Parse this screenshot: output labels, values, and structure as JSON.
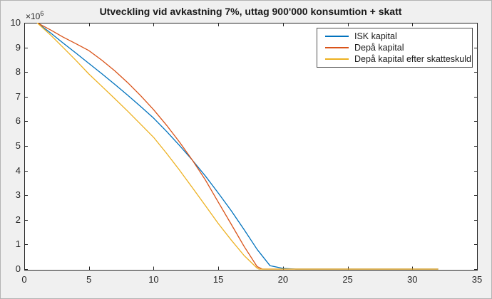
{
  "figure": {
    "background": "#f0f0f0",
    "border_color": "#b3b3b3",
    "plot_background": "#ffffff",
    "axis_color": "#262626",
    "tick_label_color": "#262626"
  },
  "chart_data": {
    "type": "line",
    "title": "Utveckling vid avkastning 7%, uttag 900'000 konsumtion + skatt",
    "xlabel": "",
    "ylabel": "",
    "grid": false,
    "x": {
      "min": 0,
      "max": 35,
      "ticks": [
        0,
        5,
        10,
        15,
        20,
        25,
        30,
        35
      ]
    },
    "y": {
      "min": 0,
      "max": 10,
      "ticks": [
        0,
        1,
        2,
        3,
        4,
        5,
        6,
        7,
        8,
        9,
        10
      ],
      "multiplier_base": "×10",
      "multiplier_exponent": "6",
      "unit_scale": 1000000
    },
    "legend": {
      "position": "top-right"
    },
    "series": [
      {
        "name": "ISK kapital",
        "color": "#0072BD",
        "points": [
          [
            1,
            10
          ],
          [
            2,
            9.6
          ],
          [
            3,
            9.18
          ],
          [
            4,
            8.77
          ],
          [
            5,
            8.35
          ],
          [
            6,
            7.93
          ],
          [
            7,
            7.5
          ],
          [
            8,
            7.06
          ],
          [
            9,
            6.6
          ],
          [
            10,
            6.13
          ],
          [
            11,
            5.59
          ],
          [
            12,
            5.02
          ],
          [
            13,
            4.42
          ],
          [
            14,
            3.78
          ],
          [
            15,
            3.09
          ],
          [
            16,
            2.37
          ],
          [
            17,
            1.6
          ],
          [
            18,
            0.8
          ],
          [
            19,
            0.14
          ],
          [
            20,
            0.03
          ],
          [
            21,
            0
          ],
          [
            22,
            0
          ],
          [
            23,
            0
          ],
          [
            24,
            0
          ],
          [
            25,
            0
          ],
          [
            26,
            0
          ],
          [
            27,
            0
          ],
          [
            28,
            0
          ],
          [
            29,
            0
          ],
          [
            30,
            0
          ],
          [
            31,
            0
          ],
          [
            32,
            0
          ]
        ]
      },
      {
        "name": "Depå kapital",
        "color": "#D95319",
        "points": [
          [
            1,
            10
          ],
          [
            2,
            9.72
          ],
          [
            3,
            9.42
          ],
          [
            4,
            9.15
          ],
          [
            5,
            8.87
          ],
          [
            6,
            8.48
          ],
          [
            7,
            8.05
          ],
          [
            8,
            7.57
          ],
          [
            9,
            7.04
          ],
          [
            10,
            6.47
          ],
          [
            11,
            5.84
          ],
          [
            12,
            5.16
          ],
          [
            13,
            4.42
          ],
          [
            14,
            3.62
          ],
          [
            15,
            2.72
          ],
          [
            16,
            1.82
          ],
          [
            17,
            0.92
          ],
          [
            18,
            0.1
          ],
          [
            18.4,
            0
          ],
          [
            19,
            0
          ],
          [
            20,
            0
          ],
          [
            21,
            0
          ],
          [
            22,
            0
          ],
          [
            23,
            0
          ],
          [
            24,
            0
          ],
          [
            25,
            0
          ],
          [
            26,
            0
          ],
          [
            27,
            0
          ],
          [
            28,
            0
          ],
          [
            29,
            0
          ],
          [
            30,
            0
          ],
          [
            31,
            0
          ],
          [
            32,
            0
          ]
        ]
      },
      {
        "name": "Depå kapital efter skatteskuld",
        "color": "#EDB120",
        "points": [
          [
            1,
            10
          ],
          [
            2,
            9.52
          ],
          [
            3,
            9
          ],
          [
            4,
            8.47
          ],
          [
            5,
            7.92
          ],
          [
            6,
            7.42
          ],
          [
            7,
            6.92
          ],
          [
            8,
            6.41
          ],
          [
            9,
            5.88
          ],
          [
            10,
            5.35
          ],
          [
            11,
            4.7
          ],
          [
            12,
            4.02
          ],
          [
            13,
            3.3
          ],
          [
            14,
            2.58
          ],
          [
            15,
            1.85
          ],
          [
            16,
            1.18
          ],
          [
            17,
            0.55
          ],
          [
            18,
            0.04
          ],
          [
            18.15,
            0
          ],
          [
            19,
            0
          ],
          [
            20,
            0
          ],
          [
            21,
            0
          ],
          [
            22,
            0
          ],
          [
            23,
            0
          ],
          [
            24,
            0
          ],
          [
            25,
            0
          ],
          [
            26,
            0
          ],
          [
            27,
            0
          ],
          [
            28,
            0
          ],
          [
            29,
            0
          ],
          [
            30,
            0
          ],
          [
            31,
            0
          ],
          [
            32,
            0
          ]
        ]
      }
    ]
  }
}
